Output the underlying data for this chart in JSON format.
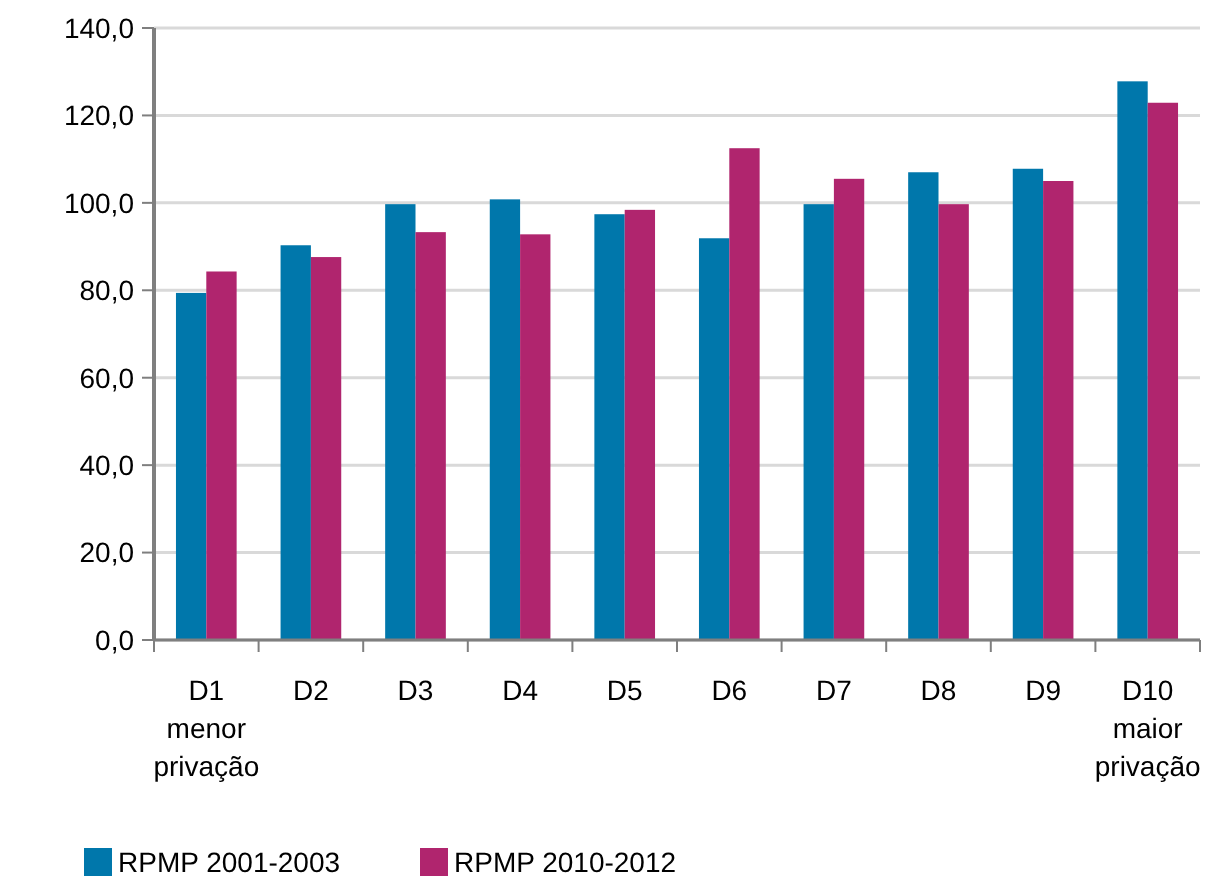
{
  "chart_data": {
    "type": "bar",
    "categories": [
      "D1\nmenor\nprivação",
      "D2",
      "D3",
      "D4",
      "D5",
      "D6",
      "D7",
      "D8",
      "D9",
      "D10\nmaior\nprivação"
    ],
    "series": [
      {
        "name": "RPMP 2001-2003",
        "color": "#0077ab",
        "values": [
          79.4,
          90.3,
          99.7,
          100.8,
          97.4,
          91.9,
          99.7,
          107,
          107.8,
          127.8
        ]
      },
      {
        "name": "RPMP 2010-2012",
        "color": "#b0256e",
        "values": [
          84.3,
          87.6,
          93.3,
          92.8,
          98.4,
          112.5,
          105.5,
          99.7,
          105,
          122.9
        ]
      }
    ],
    "ylim": [
      0,
      140
    ],
    "yticks": [
      {
        "value": 0,
        "label": "0,0"
      },
      {
        "value": 20,
        "label": "20,0"
      },
      {
        "value": 40,
        "label": "40,0"
      },
      {
        "value": 60,
        "label": "60,0"
      },
      {
        "value": 80,
        "label": "80,0"
      },
      {
        "value": 100,
        "label": "100,0"
      },
      {
        "value": 120,
        "label": "120,0"
      },
      {
        "value": 140,
        "label": "140,0"
      }
    ],
    "grid": "y",
    "legend": "bottom left"
  }
}
